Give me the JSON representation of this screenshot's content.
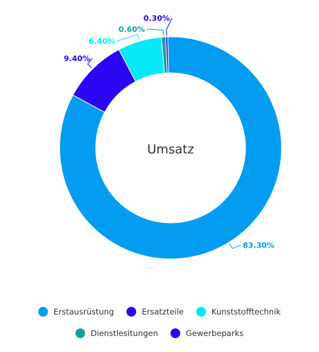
{
  "chart_data": {
    "type": "pie",
    "center_label": "Umsatz",
    "slices": [
      {
        "name": "Erstausrüstung",
        "value": 83.3,
        "label": "83.30%",
        "color": "#039cf0"
      },
      {
        "name": "Ersatzteile",
        "value": 9.4,
        "label": "9.40%",
        "color": "#2a06f2"
      },
      {
        "name": "Kunststofftechnik",
        "value": 6.4,
        "label": "6.40%",
        "color": "#07e8f8"
      },
      {
        "name": "Dienstlesitungen",
        "value": 0.6,
        "label": "0.60%",
        "color": "#169f9f"
      },
      {
        "name": "Gewerbeparks",
        "value": 0.3,
        "label": "0.30%",
        "color": "#2a06f2"
      }
    ],
    "legend_position": "bottom"
  }
}
